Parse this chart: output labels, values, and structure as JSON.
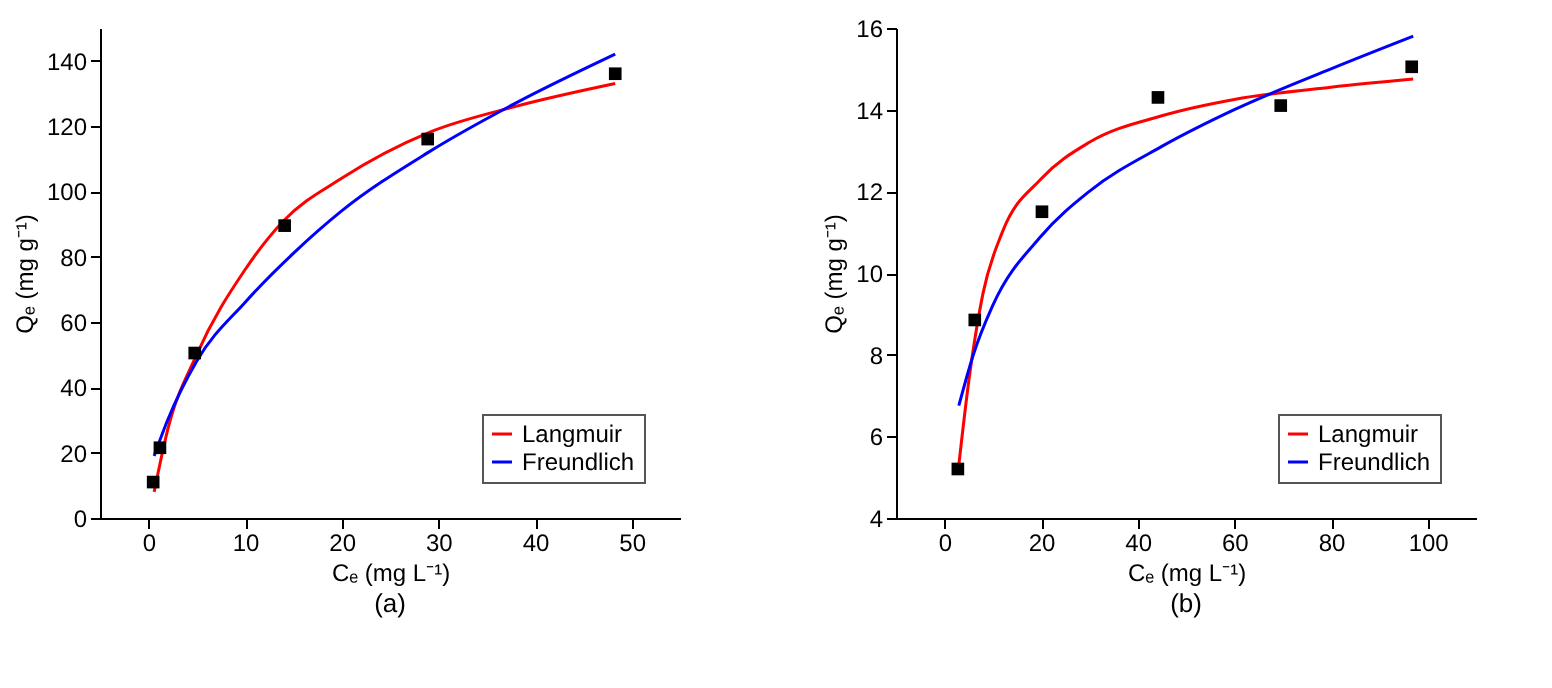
{
  "chart_data": [
    {
      "type": "scatter",
      "title": "(a)",
      "xlabel": "Cₑ (mg L⁻¹)",
      "ylabel": "Qₑ (mg g⁻¹)",
      "xlim": [
        -5,
        55
      ],
      "ylim": [
        0,
        150
      ],
      "xticks": [
        0,
        10,
        20,
        30,
        40,
        50
      ],
      "yticks": [
        0,
        20,
        40,
        60,
        80,
        100,
        120,
        140
      ],
      "grid": false,
      "legend": "bottom right",
      "series": [
        {
          "marker": "square",
          "color": "#000000",
          "x": [
            0.5,
            1.2,
            4.8,
            14.1,
            28.9,
            48.3
          ],
          "values": [
            11,
            21.5,
            50.5,
            89.5,
            116,
            136
          ]
        },
        {
          "type": "line",
          "name": "Langmuir",
          "color": "#ff0000",
          "marker": "none",
          "x": [
            0.6,
            2,
            5,
            10,
            14,
            20,
            29,
            38,
            48.3
          ],
          "values": [
            8,
            27,
            50,
            76,
            91,
            104,
            118,
            126,
            133
          ]
        },
        {
          "type": "line",
          "name": "Freundlich",
          "color": "#0000ff",
          "marker": "none",
          "x": [
            0.6,
            2,
            5,
            10,
            15,
            20,
            29,
            38,
            48.3
          ],
          "values": [
            19,
            30,
            48,
            66,
            81,
            94,
            112,
            127,
            142
          ]
        }
      ]
    },
    {
      "type": "scatter",
      "title": "(b)",
      "xlabel": "Cₑ (mg L⁻¹)",
      "ylabel": "Qₑ (mg g⁻¹)",
      "xlim": [
        -10,
        110
      ],
      "ylim": [
        4,
        16
      ],
      "xticks": [
        0,
        20,
        40,
        60,
        80,
        100
      ],
      "yticks": [
        4,
        6,
        8,
        10,
        12,
        14,
        16
      ],
      "grid": false,
      "legend": "bottom right",
      "series": [
        {
          "marker": "square",
          "color": "#000000",
          "x": [
            2.8,
            6.3,
            20.2,
            44.2,
            69.6,
            96.7
          ],
          "values": [
            5.2,
            8.85,
            11.5,
            14.3,
            14.1,
            15.05
          ]
        },
        {
          "type": "line",
          "name": "Langmuir",
          "color": "#ff0000",
          "marker": "none",
          "x": [
            3,
            5,
            8,
            12,
            20,
            30,
            45,
            60,
            80,
            97
          ],
          "values": [
            5.3,
            7.3,
            9.5,
            11,
            12.3,
            13.2,
            13.85,
            14.25,
            14.55,
            14.75
          ]
        },
        {
          "type": "line",
          "name": "Freundlich",
          "color": "#0000ff",
          "marker": "none",
          "x": [
            3,
            6,
            10,
            20,
            30,
            45,
            60,
            80,
            97
          ],
          "values": [
            6.75,
            8,
            9.2,
            10.9,
            12,
            13.1,
            14,
            15,
            15.8
          ]
        }
      ]
    }
  ]
}
